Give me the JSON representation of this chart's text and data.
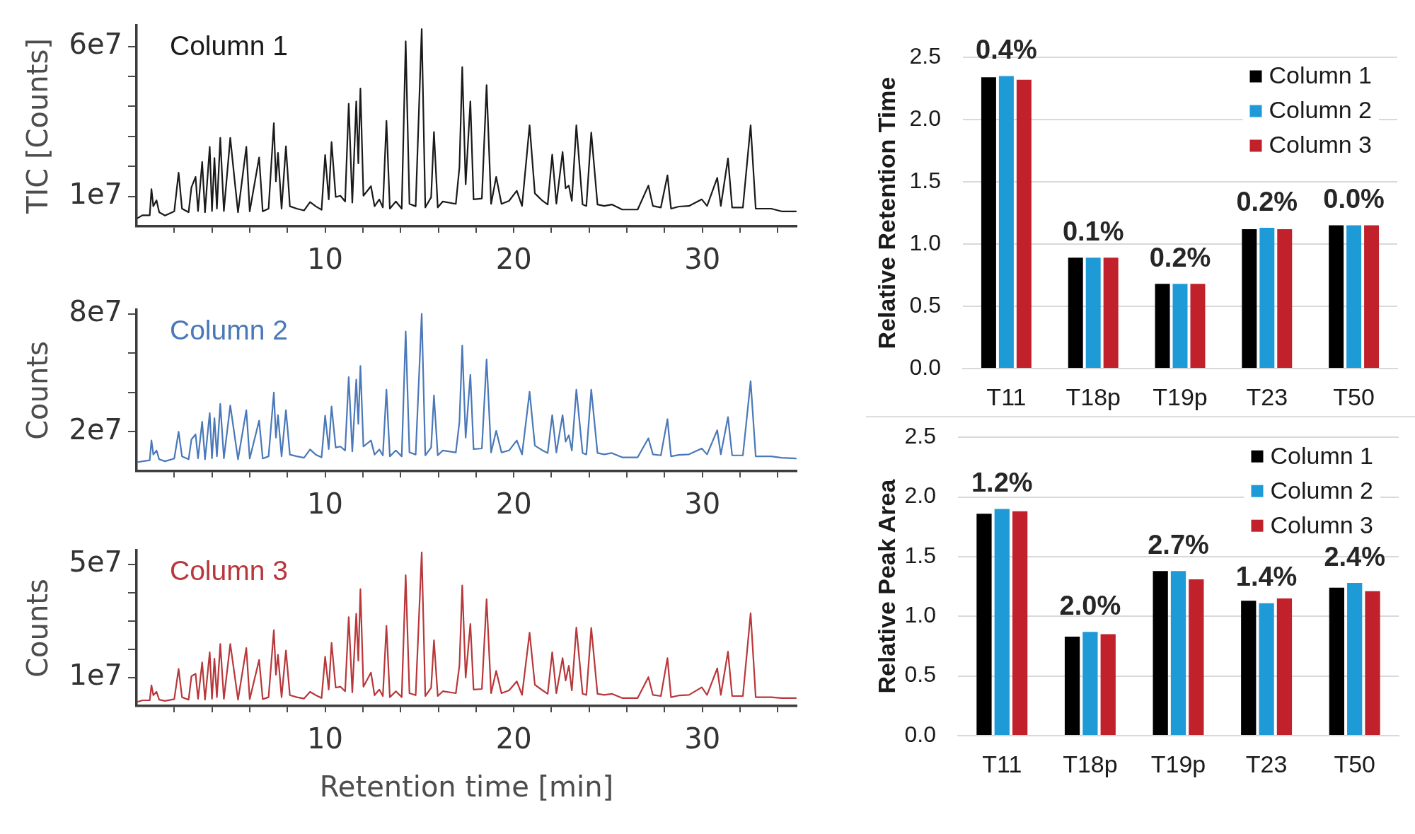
{
  "chart_data": [
    {
      "type": "line",
      "ylabel": "TIC [Counts]",
      "xlim": [
        0,
        35
      ],
      "xticks": [
        {
          "value": 2,
          "label": null
        },
        {
          "value": 4,
          "label": null
        },
        {
          "value": 6,
          "label": null
        },
        {
          "value": 8,
          "label": null
        },
        10,
        {
          "value": 12,
          "label": null
        },
        {
          "value": 14,
          "label": null
        },
        {
          "value": 16,
          "label": null
        },
        {
          "value": 18,
          "label": null
        },
        20,
        {
          "value": 22,
          "label": null
        },
        {
          "value": 24,
          "label": null
        },
        {
          "value": 26,
          "label": null
        },
        {
          "value": 28,
          "label": null
        },
        30,
        {
          "value": 32,
          "label": null
        },
        {
          "value": 34,
          "label": null
        }
      ],
      "ylim": [
        0,
        67000000.0
      ],
      "yticks": [
        {
          "value": 10000000.0,
          "label": "1e7"
        },
        {
          "value": 20000000.0,
          "label": null
        },
        {
          "value": 30000000.0,
          "label": null
        },
        {
          "value": 40000000.0,
          "label": null
        },
        {
          "value": 50000000.0,
          "label": null
        },
        {
          "value": 60000000.0,
          "label": "6e7"
        }
      ],
      "x": [
        0.07,
        0.32,
        0.7,
        0.79,
        0.89,
        1.06,
        1.2,
        1.51,
        2.0,
        2.23,
        2.41,
        2.76,
        2.91,
        3.13,
        3.26,
        3.48,
        3.63,
        3.88,
        4.0,
        4.13,
        4.26,
        4.44,
        4.63,
        4.97,
        5.19,
        5.38,
        5.82,
        6.0,
        6.5,
        6.69,
        7.0,
        7.28,
        7.39,
        7.5,
        7.69,
        7.92,
        8.13,
        8.5,
        8.88,
        9.2,
        9.5,
        9.81,
        10.0,
        10.19,
        10.34,
        10.56,
        10.81,
        11.06,
        11.25,
        11.44,
        11.65,
        11.76,
        11.87,
        12.03,
        12.43,
        12.62,
        12.87,
        13.06,
        13.25,
        13.43,
        13.75,
        14.06,
        14.27,
        14.47,
        14.8,
        15.12,
        15.31,
        15.62,
        15.77,
        15.97,
        16.24,
        16.93,
        17.12,
        17.27,
        17.45,
        17.7,
        17.87,
        18.31,
        18.56,
        18.8,
        19.07,
        19.35,
        19.75,
        20.16,
        20.44,
        20.84,
        21.12,
        21.53,
        21.8,
        22.04,
        22.26,
        22.59,
        22.75,
        22.92,
        23.08,
        23.32,
        23.65,
        23.85,
        24.11,
        24.44,
        24.8,
        25.2,
        25.75,
        26.57,
        27.14,
        27.38,
        27.8,
        28.15,
        28.34,
        28.75,
        29.29,
        29.97,
        30.25,
        30.79,
        30.98,
        31.36,
        31.58,
        32.15,
        32.56,
        32.83,
        33.65,
        34.2,
        34.96
      ],
      "series": [
        {
          "name": "Column 1",
          "color": "#1a1a1a",
          "values": [
            2800000.0,
            3700000.0,
            3700000.0,
            12400000.0,
            6700000.0,
            8700000.0,
            4700000.0,
            3600000.0,
            5000000.0,
            17900000.0,
            5900000.0,
            4700000.0,
            13000000.0,
            16500000.0,
            5100000.0,
            21500000.0,
            4700000.0,
            26500000.0,
            5100000.0,
            22800000.0,
            5900000.0,
            29500000.0,
            5100000.0,
            29500000.0,
            16000000.0,
            4700000.0,
            26500000.0,
            5000000.0,
            23000000.0,
            5000000.0,
            5900000.0,
            34400000.0,
            15000000.0,
            24500000.0,
            5900000.0,
            26700000.0,
            6700000.0,
            5900000.0,
            5300000.0,
            8100000.0,
            6700000.0,
            5500000.0,
            23800000.0,
            9000000.0,
            28100000.0,
            9800000.0,
            10200000.0,
            8300000.0,
            40900000.0,
            7900000.0,
            41700000.0,
            21000000.0,
            46000000.0,
            10200000.0,
            13400000.0,
            6700000.0,
            9000000.0,
            6300000.0,
            35200000.0,
            5900000.0,
            8300000.0,
            5900000.0,
            61700000.0,
            7500000.0,
            6700000.0,
            65800000.0,
            6300000.0,
            9700000.0,
            31500000.0,
            6300000.0,
            8300000.0,
            7500000.0,
            19700000.0,
            53100000.0,
            14000000.0,
            41700000.0,
            9000000.0,
            9300000.0,
            47100000.0,
            7500000.0,
            16500000.0,
            7500000.0,
            8500000.0,
            11900000.0,
            6800000.0,
            33700000.0,
            11000000.0,
            8500000.0,
            7300000.0,
            23900000.0,
            7600000.0,
            24800000.0,
            12700000.0,
            13600000.0,
            8500000.0,
            33700000.0,
            7300000.0,
            6800000.0,
            31300000.0,
            7300000.0,
            6800000.0,
            7300000.0,
            5600000.0,
            5600000.0,
            13600000.0,
            6800000.0,
            6300000.0,
            17000000.0,
            5900000.0,
            6600000.0,
            6800000.0,
            9000000.0,
            6800000.0,
            16200000.0,
            6800000.0,
            22700000.0,
            6300000.0,
            6300000.0,
            33700000.0,
            5900000.0,
            5900000.0,
            5000000.0,
            5000000.0
          ]
        }
      ]
    },
    {
      "type": "line",
      "ylabel": "Counts",
      "xlim": [
        0,
        35
      ],
      "xticks": [
        {
          "value": 2,
          "label": null
        },
        {
          "value": 4,
          "label": null
        },
        {
          "value": 6,
          "label": null
        },
        {
          "value": 8,
          "label": null
        },
        10,
        {
          "value": 12,
          "label": null
        },
        {
          "value": 14,
          "label": null
        },
        {
          "value": 16,
          "label": null
        },
        {
          "value": 18,
          "label": null
        },
        20,
        {
          "value": 22,
          "label": null
        },
        {
          "value": 24,
          "label": null
        },
        {
          "value": 26,
          "label": null
        },
        {
          "value": 28,
          "label": null
        },
        30,
        {
          "value": 32,
          "label": null
        },
        {
          "value": 34,
          "label": null
        }
      ],
      "ylim": [
        0,
        82000000.0
      ],
      "yticks": [
        {
          "value": 20000000.0,
          "label": "2e7"
        },
        {
          "value": 40000000.0,
          "label": null
        },
        {
          "value": 60000000.0,
          "label": null
        },
        {
          "value": 80000000.0,
          "label": "8e7"
        }
      ],
      "x": [
        0.07,
        0.32,
        0.7,
        0.79,
        0.89,
        1.06,
        1.2,
        1.51,
        2.0,
        2.23,
        2.41,
        2.76,
        2.91,
        3.13,
        3.26,
        3.48,
        3.63,
        3.88,
        4.0,
        4.13,
        4.26,
        4.44,
        4.63,
        4.97,
        5.19,
        5.38,
        5.82,
        6.0,
        6.5,
        6.69,
        7.0,
        7.28,
        7.39,
        7.5,
        7.69,
        7.92,
        8.13,
        8.5,
        8.88,
        9.2,
        9.5,
        9.81,
        10.0,
        10.19,
        10.34,
        10.56,
        10.81,
        11.06,
        11.25,
        11.44,
        11.65,
        11.76,
        11.87,
        12.03,
        12.43,
        12.62,
        12.87,
        13.06,
        13.25,
        13.43,
        13.75,
        14.06,
        14.27,
        14.47,
        14.8,
        15.12,
        15.31,
        15.62,
        15.77,
        15.97,
        16.24,
        16.93,
        17.12,
        17.27,
        17.45,
        17.7,
        17.87,
        18.31,
        18.56,
        18.8,
        19.07,
        19.35,
        19.75,
        20.16,
        20.44,
        20.84,
        21.12,
        21.53,
        21.8,
        22.04,
        22.26,
        22.59,
        22.75,
        22.92,
        23.08,
        23.32,
        23.65,
        23.85,
        24.11,
        24.44,
        24.8,
        25.2,
        25.75,
        26.57,
        27.14,
        27.38,
        27.8,
        28.15,
        28.34,
        28.75,
        29.29,
        29.97,
        30.25,
        30.79,
        30.98,
        31.36,
        31.58,
        32.15,
        32.56,
        32.83,
        33.65,
        34.2,
        34.96
      ],
      "series": [
        {
          "name": "Column 2",
          "color": "#4a78b8",
          "values": [
            4600000.0,
            5000000.0,
            5500000.0,
            15600000.0,
            8400000.0,
            10500000.0,
            6000000.0,
            5000000.0,
            6400000.0,
            20000000.0,
            7500000.0,
            6000000.0,
            16100000.0,
            18700000.0,
            6500000.0,
            25100000.0,
            6000000.0,
            29500000.0,
            6500000.0,
            26900000.0,
            7500000.0,
            34200000.0,
            6500000.0,
            33400000.0,
            18700000.0,
            6000000.0,
            31000000.0,
            6400000.0,
            25700000.0,
            6400000.0,
            7500000.0,
            40000000.0,
            17000000.0,
            28500000.0,
            7500000.0,
            31000000.0,
            8400000.0,
            7500000.0,
            6800000.0,
            11000000.0,
            8400000.0,
            7000000.0,
            28200000.0,
            11200000.0,
            32900000.0,
            12000000.0,
            12500000.0,
            10500000.0,
            47800000.0,
            10000000.0,
            46500000.0,
            24000000.0,
            53500000.0,
            12500000.0,
            15600000.0,
            8400000.0,
            11000000.0,
            8000000.0,
            41400000.0,
            7500000.0,
            10500000.0,
            7500000.0,
            71000000.0,
            9500000.0,
            8400000.0,
            80000000.0,
            8000000.0,
            12000000.0,
            38500000.0,
            8000000.0,
            10500000.0,
            9500000.0,
            25000000.0,
            63800000.0,
            17000000.0,
            49000000.0,
            11200000.0,
            11500000.0,
            56800000.0,
            9500000.0,
            20500000.0,
            9500000.0,
            10500000.0,
            15600000.0,
            8500000.0,
            40300000.0,
            13000000.0,
            10500000.0,
            9200000.0,
            28500000.0,
            9500000.0,
            28500000.0,
            15000000.0,
            18200000.0,
            10500000.0,
            41400000.0,
            9200000.0,
            8500000.0,
            41400000.0,
            9200000.0,
            8500000.0,
            9200000.0,
            7000000.0,
            7000000.0,
            16700000.0,
            8500000.0,
            8000000.0,
            26400000.0,
            7500000.0,
            8200000.0,
            8500000.0,
            11500000.0,
            8500000.0,
            20800000.0,
            8500000.0,
            27500000.0,
            8000000.0,
            8000000.0,
            45700000.0,
            7500000.0,
            7500000.0,
            6800000.0,
            6400000.0
          ]
        }
      ]
    },
    {
      "type": "line",
      "ylabel": "Counts",
      "xlabel": "Retention time [min]",
      "xlim": [
        0,
        35
      ],
      "xticks": [
        {
          "value": 2,
          "label": null
        },
        {
          "value": 4,
          "label": null
        },
        {
          "value": 6,
          "label": null
        },
        {
          "value": 8,
          "label": null
        },
        10,
        {
          "value": 12,
          "label": null
        },
        {
          "value": 14,
          "label": null
        },
        {
          "value": 16,
          "label": null
        },
        {
          "value": 18,
          "label": null
        },
        20,
        {
          "value": 22,
          "label": null
        },
        {
          "value": 24,
          "label": null
        },
        {
          "value": 26,
          "label": null
        },
        {
          "value": 28,
          "label": null
        },
        30,
        {
          "value": 32,
          "label": null
        },
        {
          "value": 34,
          "label": null
        }
      ],
      "ylim": [
        0,
        55000000.0
      ],
      "yticks": [
        {
          "value": 10000000.0,
          "label": "1e7"
        },
        {
          "value": 20000000.0,
          "label": null
        },
        {
          "value": 30000000.0,
          "label": null
        },
        {
          "value": 40000000.0,
          "label": null
        },
        {
          "value": 50000000.0,
          "label": "5e7"
        }
      ],
      "x": [
        0.07,
        0.32,
        0.7,
        0.79,
        0.89,
        1.06,
        1.2,
        1.51,
        2.0,
        2.23,
        2.41,
        2.76,
        2.91,
        3.13,
        3.26,
        3.48,
        3.63,
        3.88,
        4.0,
        4.13,
        4.26,
        4.44,
        4.63,
        4.97,
        5.19,
        5.38,
        5.82,
        6.0,
        6.5,
        6.69,
        7.0,
        7.28,
        7.39,
        7.5,
        7.69,
        7.92,
        8.13,
        8.5,
        8.88,
        9.2,
        9.5,
        9.81,
        10.0,
        10.19,
        10.34,
        10.56,
        10.81,
        11.06,
        11.25,
        11.44,
        11.65,
        11.76,
        11.87,
        12.03,
        12.43,
        12.62,
        12.87,
        13.06,
        13.25,
        13.43,
        13.75,
        14.06,
        14.27,
        14.47,
        14.8,
        15.12,
        15.31,
        15.62,
        15.77,
        15.97,
        16.24,
        16.93,
        17.12,
        17.27,
        17.45,
        17.7,
        17.87,
        18.31,
        18.56,
        18.8,
        19.07,
        19.35,
        19.75,
        20.16,
        20.44,
        20.84,
        21.12,
        21.53,
        21.8,
        22.04,
        22.26,
        22.59,
        22.75,
        22.92,
        23.08,
        23.32,
        23.65,
        23.85,
        24.11,
        24.44,
        24.8,
        25.2,
        25.75,
        26.57,
        27.14,
        27.38,
        27.8,
        28.15,
        28.34,
        28.75,
        29.29,
        29.97,
        30.25,
        30.79,
        30.98,
        31.36,
        31.58,
        32.15,
        32.56,
        32.83,
        33.65,
        34.2,
        34.96
      ],
      "series": [
        {
          "name": "Column 3",
          "color": "#b8373a",
          "values": [
            1500000.0,
            2000000.0,
            2000000.0,
            7300000.0,
            3800000.0,
            5000000.0,
            2200000.0,
            1800000.0,
            2400000.0,
            13100000.0,
            3100000.0,
            2200000.0,
            10500000.0,
            11400000.0,
            2500000.0,
            15400000.0,
            2200000.0,
            19000000.0,
            2500000.0,
            16700000.0,
            3100000.0,
            21900000.0,
            2500000.0,
            21900000.0,
            11400000.0,
            2200000.0,
            20500000.0,
            2400000.0,
            16300000.0,
            2400000.0,
            3100000.0,
            26800000.0,
            11000000.0,
            18100000.0,
            3100000.0,
            19600000.0,
            3800000.0,
            3100000.0,
            2600000.0,
            5000000.0,
            3800000.0,
            2800000.0,
            17400000.0,
            5800000.0,
            22300000.0,
            6500000.0,
            6800000.0,
            5200000.0,
            31400000.0,
            4800000.0,
            32600000.0,
            16000000.0,
            41300000.0,
            6800000.0,
            11800000.0,
            3800000.0,
            5800000.0,
            3500000.0,
            28300000.0,
            3100000.0,
            5200000.0,
            3100000.0,
            46200000.0,
            4500000.0,
            3800000.0,
            54300000.0,
            3500000.0,
            6400000.0,
            23200000.0,
            3500000.0,
            5200000.0,
            4500000.0,
            14200000.0,
            42600000.0,
            10000000.0,
            29000000.0,
            5800000.0,
            6000000.0,
            37700000.0,
            4500000.0,
            12400000.0,
            4500000.0,
            5500000.0,
            8700000.0,
            3900000.0,
            25900000.0,
            7500000.0,
            5500000.0,
            4300000.0,
            19000000.0,
            4500000.0,
            16900000.0,
            9000000.0,
            14200000.0,
            5500000.0,
            27700000.0,
            4300000.0,
            3900000.0,
            27600000.0,
            4300000.0,
            3900000.0,
            4300000.0,
            2800000.0,
            2800000.0,
            10200000.0,
            3900000.0,
            3500000.0,
            16900000.0,
            3100000.0,
            3700000.0,
            3900000.0,
            6600000.0,
            3900000.0,
            13300000.0,
            3900000.0,
            19200000.0,
            3500000.0,
            3500000.0,
            32800000.0,
            3100000.0,
            3100000.0,
            2800000.0,
            2800000.0
          ]
        }
      ]
    },
    {
      "type": "bar",
      "ylabel": "Relative Retention Time",
      "categories": [
        "T11",
        "T18p",
        "T19p",
        "T23",
        "T50"
      ],
      "series": [
        {
          "name": "Column 1",
          "color": "#000000",
          "values": [
            2.34,
            0.89,
            0.68,
            1.12,
            1.15
          ]
        },
        {
          "name": "Column 2",
          "color": "#1e9bd7",
          "values": [
            2.35,
            0.89,
            0.68,
            1.13,
            1.15
          ]
        },
        {
          "name": "Column 3",
          "color": "#c0212b",
          "values": [
            2.32,
            0.89,
            0.68,
            1.12,
            1.15
          ]
        }
      ],
      "ylim": [
        0,
        2.5
      ],
      "yticks": [
        {
          "value": 0,
          "label": "0.0"
        },
        0.5,
        {
          "value": 1,
          "label": "1.0"
        },
        1.5,
        {
          "value": 2,
          "label": "2.0"
        },
        2.5
      ],
      "grid": "y",
      "legend": "top right",
      "annotations": [
        {
          "text": "0.4%",
          "x": "T11",
          "y": 2.35
        },
        {
          "text": "0.1%",
          "x": "T18p",
          "y": 0.89
        },
        {
          "text": "0.2%",
          "x": "T19p",
          "y": 0.68
        },
        {
          "text": "0.2%",
          "x": "T23",
          "y": 1.13
        },
        {
          "text": "0.0%",
          "x": "T50",
          "y": 1.15
        }
      ]
    },
    {
      "type": "bar",
      "ylabel": "Relative Peak Area",
      "categories": [
        "T11",
        "T18p",
        "T19p",
        "T23",
        "T50"
      ],
      "series": [
        {
          "name": "Column 1",
          "color": "#000000",
          "values": [
            1.86,
            0.83,
            1.38,
            1.13,
            1.24
          ]
        },
        {
          "name": "Column 2",
          "color": "#1e9bd7",
          "values": [
            1.9,
            0.87,
            1.38,
            1.11,
            1.28
          ]
        },
        {
          "name": "Column 3",
          "color": "#c0212b",
          "values": [
            1.88,
            0.85,
            1.31,
            1.15,
            1.21
          ]
        }
      ],
      "ylim": [
        0,
        2.5
      ],
      "yticks": [
        {
          "value": 0,
          "label": "0.0"
        },
        0.5,
        {
          "value": 1,
          "label": "1.0"
        },
        1.5,
        {
          "value": 2,
          "label": "2.0"
        },
        2.5
      ],
      "grid": "y",
      "legend": "top right",
      "annotations": [
        {
          "text": "1.2%",
          "x": "T11",
          "y": 1.9
        },
        {
          "text": "2.0%",
          "x": "T18p",
          "y": 0.87
        },
        {
          "text": "2.7%",
          "x": "T19p",
          "y": 1.38
        },
        {
          "text": "1.4%",
          "x": "T23",
          "y": 1.11
        },
        {
          "text": "2.4%",
          "x": "T50",
          "y": 1.28
        }
      ]
    }
  ]
}
